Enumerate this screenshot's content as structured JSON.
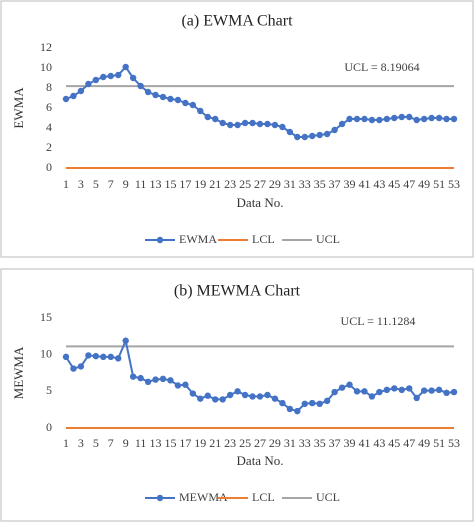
{
  "chart_data": [
    {
      "type": "line",
      "title": "(a) EWMA Chart",
      "xlabel": "Data No.",
      "ylabel": "EWMA",
      "annotation": "UCL = 8.19064",
      "categories": [
        1,
        null,
        3,
        null,
        5,
        null,
        7,
        null,
        9,
        null,
        11,
        null,
        13,
        null,
        15,
        null,
        17,
        null,
        19,
        null,
        21,
        null,
        23,
        null,
        25,
        null,
        27,
        null,
        29,
        null,
        31,
        null,
        33,
        null,
        35,
        null,
        37,
        null,
        39,
        null,
        41,
        null,
        43,
        null,
        45,
        null,
        47,
        null,
        49,
        null,
        51,
        null,
        53
      ],
      "series": [
        {
          "name": "EWMA",
          "color": "#4472c4",
          "marker": true,
          "values": [
            6.9,
            7.2,
            7.7,
            8.4,
            8.8,
            9.1,
            9.2,
            9.3,
            10.1,
            9.0,
            8.2,
            7.6,
            7.3,
            7.1,
            6.9,
            6.8,
            6.5,
            6.3,
            5.7,
            5.1,
            4.9,
            4.5,
            4.3,
            4.3,
            4.5,
            4.5,
            4.4,
            4.4,
            4.3,
            4.1,
            3.6,
            3.1,
            3.1,
            3.2,
            3.3,
            3.4,
            3.8,
            4.4,
            4.9,
            4.9,
            4.9,
            4.8,
            4.8,
            4.9,
            5.0,
            5.1,
            5.1,
            4.8,
            4.9,
            5.0,
            5.0,
            4.9,
            4.9
          ]
        },
        {
          "name": "LCL",
          "color": "#ed7d31",
          "marker": false,
          "values": [
            0,
            0,
            0,
            0,
            0,
            0,
            0,
            0,
            0,
            0,
            0,
            0,
            0,
            0,
            0,
            0,
            0,
            0,
            0,
            0,
            0,
            0,
            0,
            0,
            0,
            0,
            0,
            0,
            0,
            0,
            0,
            0,
            0,
            0,
            0,
            0,
            0,
            0,
            0,
            0,
            0,
            0,
            0,
            0,
            0,
            0,
            0,
            0,
            0,
            0,
            0,
            0,
            0
          ]
        },
        {
          "name": "UCL",
          "color": "#a5a5a5",
          "marker": false,
          "values": [
            8.19064,
            8.19064,
            8.19064,
            8.19064,
            8.19064,
            8.19064,
            8.19064,
            8.19064,
            8.19064,
            8.19064,
            8.19064,
            8.19064,
            8.19064,
            8.19064,
            8.19064,
            8.19064,
            8.19064,
            8.19064,
            8.19064,
            8.19064,
            8.19064,
            8.19064,
            8.19064,
            8.19064,
            8.19064,
            8.19064,
            8.19064,
            8.19064,
            8.19064,
            8.19064,
            8.19064,
            8.19064,
            8.19064,
            8.19064,
            8.19064,
            8.19064,
            8.19064,
            8.19064,
            8.19064,
            8.19064,
            8.19064,
            8.19064,
            8.19064,
            8.19064,
            8.19064,
            8.19064,
            8.19064,
            8.19064,
            8.19064,
            8.19064,
            8.19064,
            8.19064,
            8.19064
          ]
        }
      ],
      "ylim": [
        0,
        12
      ],
      "yticks": [
        0,
        2,
        4,
        6,
        8,
        10,
        12
      ],
      "grid": false,
      "legend": "bottom"
    },
    {
      "type": "line",
      "title": "(b) MEWMA Chart",
      "xlabel": "Data No.",
      "ylabel": "MEWMA",
      "annotation": "UCL = 11.1284",
      "categories": [
        1,
        null,
        3,
        null,
        5,
        null,
        7,
        null,
        9,
        null,
        11,
        null,
        13,
        null,
        15,
        null,
        17,
        null,
        19,
        null,
        21,
        null,
        23,
        null,
        25,
        null,
        27,
        null,
        29,
        null,
        31,
        null,
        33,
        null,
        35,
        null,
        37,
        null,
        39,
        null,
        41,
        null,
        43,
        null,
        45,
        null,
        47,
        null,
        49,
        null,
        51,
        null,
        53
      ],
      "series": [
        {
          "name": "MEWMA",
          "color": "#4472c4",
          "marker": true,
          "values": [
            9.7,
            8.1,
            8.4,
            9.9,
            9.8,
            9.7,
            9.7,
            9.5,
            11.9,
            7.0,
            6.8,
            6.3,
            6.6,
            6.7,
            6.5,
            5.8,
            5.9,
            4.7,
            4.0,
            4.4,
            3.9,
            3.9,
            4.5,
            5.0,
            4.5,
            4.3,
            4.3,
            4.5,
            4.0,
            3.4,
            2.6,
            2.3,
            3.3,
            3.4,
            3.3,
            3.7,
            4.9,
            5.5,
            5.9,
            5.0,
            5.0,
            4.3,
            4.9,
            5.2,
            5.4,
            5.2,
            5.4,
            4.1,
            5.1,
            5.1,
            5.2,
            4.8,
            4.9
          ]
        },
        {
          "name": "LCL",
          "color": "#ed7d31",
          "marker": false,
          "values": [
            0,
            0,
            0,
            0,
            0,
            0,
            0,
            0,
            0,
            0,
            0,
            0,
            0,
            0,
            0,
            0,
            0,
            0,
            0,
            0,
            0,
            0,
            0,
            0,
            0,
            0,
            0,
            0,
            0,
            0,
            0,
            0,
            0,
            0,
            0,
            0,
            0,
            0,
            0,
            0,
            0,
            0,
            0,
            0,
            0,
            0,
            0,
            0,
            0,
            0,
            0,
            0,
            0
          ]
        },
        {
          "name": "UCL",
          "color": "#a5a5a5",
          "marker": false,
          "values": [
            11.1284,
            11.1284,
            11.1284,
            11.1284,
            11.1284,
            11.1284,
            11.1284,
            11.1284,
            11.1284,
            11.1284,
            11.1284,
            11.1284,
            11.1284,
            11.1284,
            11.1284,
            11.1284,
            11.1284,
            11.1284,
            11.1284,
            11.1284,
            11.1284,
            11.1284,
            11.1284,
            11.1284,
            11.1284,
            11.1284,
            11.1284,
            11.1284,
            11.1284,
            11.1284,
            11.1284,
            11.1284,
            11.1284,
            11.1284,
            11.1284,
            11.1284,
            11.1284,
            11.1284,
            11.1284,
            11.1284,
            11.1284,
            11.1284,
            11.1284,
            11.1284,
            11.1284,
            11.1284,
            11.1284,
            11.1284,
            11.1284,
            11.1284,
            11.1284,
            11.1284,
            11.1284
          ]
        }
      ],
      "ylim": [
        0,
        15
      ],
      "yticks": [
        0,
        5,
        10,
        15
      ],
      "grid": false,
      "legend": "bottom"
    }
  ]
}
